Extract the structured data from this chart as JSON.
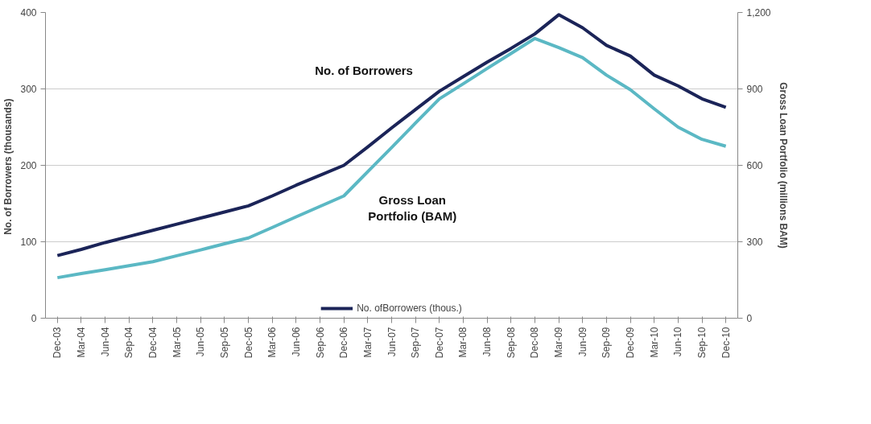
{
  "chart_data": {
    "type": "line",
    "categories": [
      "Dec-03",
      "Mar-04",
      "Jun-04",
      "Sep-04",
      "Dec-04",
      "Mar-05",
      "Jun-05",
      "Sep-05",
      "Dec-05",
      "Mar-06",
      "Jun-06",
      "Sep-06",
      "Dec-06",
      "Mar-07",
      "Jun-07",
      "Sep-07",
      "Dec-07",
      "Mar-08",
      "Jun-08",
      "Sep-08",
      "Dec-08",
      "Mar-09",
      "Jun-09",
      "Sep-09",
      "Dec-09",
      "Mar-10",
      "Jun-10",
      "Sep-10",
      "Dec-10"
    ],
    "series": [
      {
        "name": "No. ofBorrowers (thous.)",
        "color": "#1b2458",
        "values": [
          82,
          90,
          99,
          107,
          115,
          123,
          131,
          139,
          147,
          160,
          174,
          187,
          200,
          224,
          249,
          273,
          297,
          316,
          335,
          353,
          372,
          397,
          380,
          357,
          343,
          318,
          304,
          287,
          276
        ]
      },
      {
        "color": "#5bb8c4",
        "axis": "y2",
        "values": [
          159,
          175,
          190,
          206,
          222,
          245,
          268,
          292,
          315,
          356,
          398,
          439,
          480,
          575,
          670,
          766,
          861,
          920,
          980,
          1039,
          1098,
          1062,
          1023,
          954,
          897,
          822,
          750,
          702,
          675
        ]
      }
    ],
    "ylabel": "No. of Borrowers  (thousands)",
    "y2label": "Gross Loan Portfolio (millions BAM)",
    "ylim": [
      0,
      400
    ],
    "yticks": [
      0,
      100,
      200,
      300,
      400
    ],
    "y2lim": [
      0,
      1200
    ],
    "y2ticks": [
      0,
      {
        "value": 300,
        "label": "300"
      },
      {
        "value": 600,
        "label": "600"
      },
      {
        "value": 900,
        "label": "900"
      },
      {
        "value": 1200,
        "label": "1,200"
      }
    ],
    "annotations": [
      "No. of Borrowers",
      "Gross Loan\nPortfolio (BAM)"
    ],
    "grid": "y",
    "legend": "bottom",
    "marker": "none",
    "line_style": "solid"
  }
}
